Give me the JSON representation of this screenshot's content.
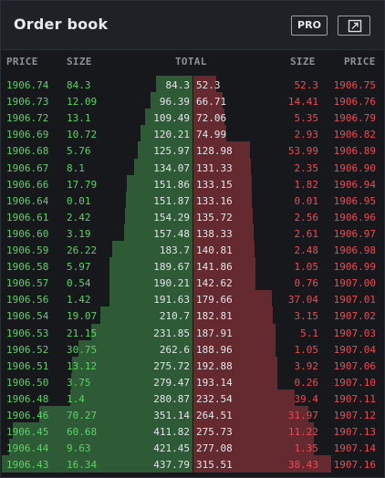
{
  "header": {
    "title": "Order book",
    "pro_label": "PRO",
    "popout_icon": "external-link-icon"
  },
  "columns": {
    "bid_price": "PRICE",
    "bid_size": "SIZE",
    "total": "TOTAL",
    "ask_size": "SIZE",
    "ask_price": "PRICE"
  },
  "colors": {
    "bid_text": "#5fd06a",
    "ask_text": "#ee4a55",
    "bid_depth": "#2e5a36",
    "ask_depth": "#642a30"
  },
  "max_total": 437.79,
  "rows": [
    {
      "bid_price": "1906.74",
      "bid_size": "84.3",
      "bid_total": "84.3",
      "ask_total": "52.3",
      "ask_size": "52.3",
      "ask_price": "1906.75"
    },
    {
      "bid_price": "1906.73",
      "bid_size": "12.09",
      "bid_total": "96.39",
      "ask_total": "66.71",
      "ask_size": "14.41",
      "ask_price": "1906.76"
    },
    {
      "bid_price": "1906.72",
      "bid_size": "13.1",
      "bid_total": "109.49",
      "ask_total": "72.06",
      "ask_size": "5.35",
      "ask_price": "1906.79"
    },
    {
      "bid_price": "1906.69",
      "bid_size": "10.72",
      "bid_total": "120.21",
      "ask_total": "74.99",
      "ask_size": "2.93",
      "ask_price": "1906.82"
    },
    {
      "bid_price": "1906.68",
      "bid_size": "5.76",
      "bid_total": "125.97",
      "ask_total": "128.98",
      "ask_size": "53.99",
      "ask_price": "1906.89"
    },
    {
      "bid_price": "1906.67",
      "bid_size": "8.1",
      "bid_total": "134.07",
      "ask_total": "131.33",
      "ask_size": "2.35",
      "ask_price": "1906.90"
    },
    {
      "bid_price": "1906.66",
      "bid_size": "17.79",
      "bid_total": "151.86",
      "ask_total": "133.15",
      "ask_size": "1.82",
      "ask_price": "1906.94"
    },
    {
      "bid_price": "1906.64",
      "bid_size": "0.01",
      "bid_total": "151.87",
      "ask_total": "133.16",
      "ask_size": "0.01",
      "ask_price": "1906.95"
    },
    {
      "bid_price": "1906.61",
      "bid_size": "2.42",
      "bid_total": "154.29",
      "ask_total": "135.72",
      "ask_size": "2.56",
      "ask_price": "1906.96"
    },
    {
      "bid_price": "1906.60",
      "bid_size": "3.19",
      "bid_total": "157.48",
      "ask_total": "138.33",
      "ask_size": "2.61",
      "ask_price": "1906.97"
    },
    {
      "bid_price": "1906.59",
      "bid_size": "26.22",
      "bid_total": "183.7",
      "ask_total": "140.81",
      "ask_size": "2.48",
      "ask_price": "1906.98"
    },
    {
      "bid_price": "1906.58",
      "bid_size": "5.97",
      "bid_total": "189.67",
      "ask_total": "141.86",
      "ask_size": "1.05",
      "ask_price": "1906.99"
    },
    {
      "bid_price": "1906.57",
      "bid_size": "0.54",
      "bid_total": "190.21",
      "ask_total": "142.62",
      "ask_size": "0.76",
      "ask_price": "1907.00"
    },
    {
      "bid_price": "1906.56",
      "bid_size": "1.42",
      "bid_total": "191.63",
      "ask_total": "179.66",
      "ask_size": "37.04",
      "ask_price": "1907.01"
    },
    {
      "bid_price": "1906.54",
      "bid_size": "19.07",
      "bid_total": "210.7",
      "ask_total": "182.81",
      "ask_size": "3.15",
      "ask_price": "1907.02"
    },
    {
      "bid_price": "1906.53",
      "bid_size": "21.15",
      "bid_total": "231.85",
      "ask_total": "187.91",
      "ask_size": "5.1",
      "ask_price": "1907.03"
    },
    {
      "bid_price": "1906.52",
      "bid_size": "30.75",
      "bid_total": "262.6",
      "ask_total": "188.96",
      "ask_size": "1.05",
      "ask_price": "1907.04"
    },
    {
      "bid_price": "1906.51",
      "bid_size": "13.12",
      "bid_total": "275.72",
      "ask_total": "192.88",
      "ask_size": "3.92",
      "ask_price": "1907.06"
    },
    {
      "bid_price": "1906.50",
      "bid_size": "3.75",
      "bid_total": "279.47",
      "ask_total": "193.14",
      "ask_size": "0.26",
      "ask_price": "1907.10"
    },
    {
      "bid_price": "1906.48",
      "bid_size": "1.4",
      "bid_total": "280.87",
      "ask_total": "232.54",
      "ask_size": "39.4",
      "ask_price": "1907.11"
    },
    {
      "bid_price": "1906.46",
      "bid_size": "70.27",
      "bid_total": "351.14",
      "ask_total": "264.51",
      "ask_size": "31.97",
      "ask_price": "1907.12"
    },
    {
      "bid_price": "1906.45",
      "bid_size": "60.68",
      "bid_total": "411.82",
      "ask_total": "275.73",
      "ask_size": "11.22",
      "ask_price": "1907.13"
    },
    {
      "bid_price": "1906.44",
      "bid_size": "9.63",
      "bid_total": "421.45",
      "ask_total": "277.08",
      "ask_size": "1.35",
      "ask_price": "1907.14"
    },
    {
      "bid_price": "1906.43",
      "bid_size": "16.34",
      "bid_total": "437.79",
      "ask_total": "315.51",
      "ask_size": "38.43",
      "ask_price": "1907.16"
    }
  ]
}
